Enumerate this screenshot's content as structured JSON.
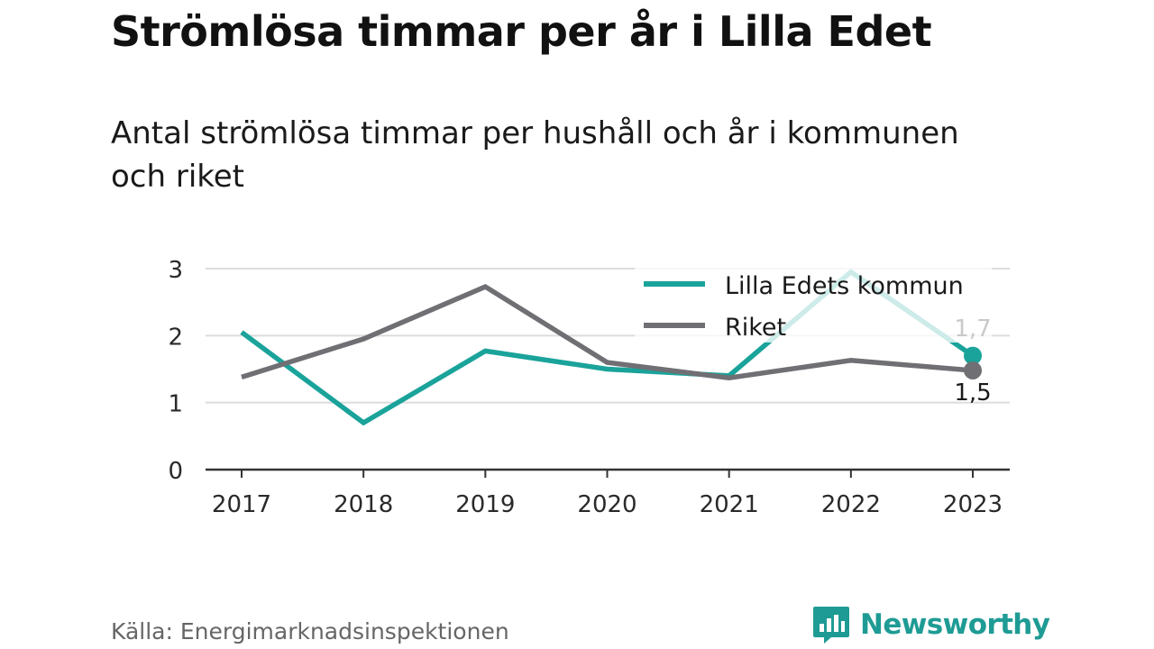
{
  "title": "Strömlösa timmar per år i Lilla Edet",
  "subtitle": "Antal strömlösa timmar per hushåll och år i kommunen och riket",
  "source": "Källa: Energimarknadsinspektionen",
  "logo": {
    "text": "Newsworthy",
    "icon": "bar-chart-bubble-icon"
  },
  "colors": {
    "teal": "#1aa39a",
    "gray": "#6f6f74",
    "teal_faded": "#c8ebe8"
  },
  "chart_data": {
    "type": "line",
    "title": "Strömlösa timmar per år i Lilla Edet",
    "subtitle": "Antal strömlösa timmar per hushåll och år i kommunen och riket",
    "x": [
      "2017",
      "2018",
      "2019",
      "2020",
      "2021",
      "2022",
      "2023"
    ],
    "ylim": [
      0,
      3
    ],
    "yticks": [
      {
        "value": 0,
        "label": "0"
      },
      {
        "value": 1,
        "label": "1"
      },
      {
        "value": 2,
        "label": "2"
      },
      {
        "value": 3,
        "label": "3"
      }
    ],
    "grid": true,
    "legend_position": "top-right",
    "series": [
      {
        "name": "Lilla Edets kommun",
        "color": "#1aa39a",
        "values": [
          2.05,
          0.7,
          1.77,
          1.5,
          1.4,
          2.95,
          1.7
        ],
        "end_label": "1,7"
      },
      {
        "name": "Riket",
        "color": "#6f6f74",
        "values": [
          1.38,
          1.95,
          2.73,
          1.6,
          1.37,
          1.63,
          1.48
        ],
        "end_label": "1,5"
      }
    ]
  }
}
